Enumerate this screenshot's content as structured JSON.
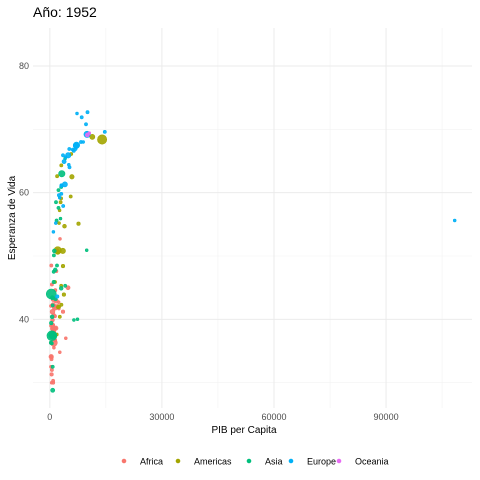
{
  "chart_data": {
    "type": "scatter",
    "title": "Año: 1952",
    "xlabel": "PIB per Capita",
    "ylabel": "Esperanza de Vida",
    "xlim": [
      -4500,
      113000
    ],
    "ylim": [
      26,
      86
    ],
    "xticks": [
      0,
      30000,
      60000,
      90000
    ],
    "xtick_labels": [
      "0",
      "30000",
      "60000",
      "90000"
    ],
    "xminor": [
      15000,
      45000,
      75000,
      105000
    ],
    "yticks": [
      40,
      60,
      80
    ],
    "ytick_labels": [
      "40",
      "60",
      "80"
    ],
    "yminor": [
      30,
      50,
      70
    ],
    "grid": true,
    "legend_position": "bottom",
    "series": [
      {
        "name": "Africa",
        "color": "#F8766D",
        "points": [
          [
            1500,
            43.1,
            1.2
          ],
          [
            900,
            30.0,
            1.0
          ],
          [
            800,
            38.2,
            1.0
          ],
          [
            1800,
            47.6,
            0.9
          ],
          [
            550,
            32.0,
            1.0
          ],
          [
            340,
            39.0,
            1.0
          ],
          [
            1200,
            38.5,
            1.0
          ],
          [
            1100,
            35.5,
            0.9
          ],
          [
            1170,
            38.1,
            1.0
          ],
          [
            1100,
            40.7,
            0.9
          ],
          [
            780,
            39.1,
            1.3
          ],
          [
            2100,
            42.1,
            1.0
          ],
          [
            1390,
            40.5,
            1.0
          ],
          [
            2670,
            34.8,
            0.9
          ],
          [
            1420,
            41.9,
            1.8
          ],
          [
            375,
            34.1,
            0.9
          ],
          [
            360,
            34.1,
            1.4
          ],
          [
            4290,
            37.0,
            0.9
          ],
          [
            480,
            30.0,
            0.9
          ],
          [
            911,
            43.1,
            1.2
          ],
          [
            510,
            34.0,
            1.0
          ],
          [
            300,
            32.5,
            0.9
          ],
          [
            853,
            42.3,
            1.3
          ],
          [
            298,
            42.1,
            0.9
          ],
          [
            575,
            38.5,
            1.0
          ],
          [
            2390,
            42.7,
            0.9
          ],
          [
            1440,
            36.7,
            1.0
          ],
          [
            369,
            36.3,
            1.1
          ],
          [
            450,
            33.7,
            1.0
          ],
          [
            743,
            40.5,
            0.9
          ],
          [
            1970,
            50.9,
            0.9
          ],
          [
            1700,
            42.9,
            1.4
          ],
          [
            470,
            31.3,
            1.1
          ],
          [
            2420,
            41.7,
            0.9
          ],
          [
            760,
            37.4,
            1.0
          ],
          [
            1077,
            36.3,
            2.2
          ],
          [
            2720,
            52.7,
            0.9
          ],
          [
            880,
            39.0,
            1.0
          ],
          [
            1060,
            37.6,
            1.0
          ],
          [
            1450,
            38.6,
            1.0
          ],
          [
            880,
            30.3,
            1.0
          ],
          [
            4880,
            45.0,
            1.3
          ],
          [
            1615,
            38.6,
            1.4
          ],
          [
            3520,
            41.2,
            1.1
          ],
          [
            716,
            41.2,
            1.5
          ],
          [
            860,
            38.6,
            1.0
          ],
          [
            1470,
            44.6,
            1.0
          ],
          [
            730,
            39.9,
            1.2
          ],
          [
            1150,
            42.0,
            1.0
          ],
          [
            406,
            48.5,
            1.0
          ],
          [
            560,
            45.5,
            1.0
          ]
        ]
      },
      {
        "name": "Americas",
        "color": "#A3A500",
        "points": [
          [
            5910,
            62.5,
            1.4
          ],
          [
            2680,
            40.4,
            1.0
          ],
          [
            2110,
            50.9,
            2.3
          ],
          [
            11370,
            68.8,
            1.6
          ],
          [
            3940,
            54.7,
            1.2
          ],
          [
            2140,
            50.6,
            1.4
          ],
          [
            2630,
            57.2,
            0.9
          ],
          [
            5590,
            59.4,
            1.0
          ],
          [
            1400,
            45.9,
            1.0
          ],
          [
            3520,
            48.4,
            1.1
          ],
          [
            3050,
            45.3,
            1.0
          ],
          [
            2430,
            42.0,
            1.1
          ],
          [
            1840,
            37.6,
            1.0
          ],
          [
            2190,
            41.9,
            1.0
          ],
          [
            2900,
            58.5,
            1.0
          ],
          [
            3480,
            50.8,
            1.7
          ],
          [
            3110,
            42.3,
            1.0
          ],
          [
            2480,
            55.2,
            0.9
          ],
          [
            1950,
            62.6,
            1.0
          ],
          [
            3760,
            43.9,
            1.1
          ],
          [
            3080,
            64.3,
            1.0
          ],
          [
            3020,
            59.1,
            1.0
          ],
          [
            13990,
            68.4,
            2.9
          ],
          [
            5720,
            66.1,
            1.0
          ],
          [
            7690,
            55.1,
            1.1
          ]
        ]
      },
      {
        "name": "Asia",
        "color": "#00BF7D",
        "points": [
          [
            780,
            28.8,
            1.3
          ],
          [
            9870,
            50.9,
            0.9
          ],
          [
            690,
            37.5,
            1.7
          ],
          [
            370,
            39.4,
            1.1
          ],
          [
            400,
            44.0,
            3.5
          ],
          [
            3050,
            60.9,
            1.0
          ],
          [
            550,
            37.4,
            3.1
          ],
          [
            750,
            37.5,
            2.4
          ],
          [
            3040,
            44.9,
            1.2
          ],
          [
            4130,
            45.3,
            1.0
          ],
          [
            4090,
            65.4,
            0.9
          ],
          [
            3220,
            63.0,
            2.0
          ],
          [
            1550,
            43.2,
            1.0
          ],
          [
            1090,
            50.1,
            1.0
          ],
          [
            1030,
            47.5,
            1.0
          ],
          [
            7400,
            40.0,
            0.9
          ],
          [
            1830,
            55.6,
            1.0
          ],
          [
            1920,
            48.5,
            1.0
          ],
          [
            786,
            42.2,
            1.0
          ],
          [
            330,
            36.3,
            1.1
          ],
          [
            545,
            36.2,
            1.0
          ],
          [
            1400,
            37.6,
            1.0
          ],
          [
            685,
            43.4,
            1.3
          ],
          [
            1450,
            47.8,
            1.2
          ],
          [
            2320,
            60.4,
            1.0
          ],
          [
            6460,
            39.9,
            0.9
          ],
          [
            2315,
            57.6,
            1.0
          ],
          [
            1080,
            45.9,
            1.1
          ],
          [
            1660,
            58.5,
            1.0
          ],
          [
            1210,
            50.8,
            1.2
          ],
          [
            605,
            40.4,
            1.2
          ],
          [
            780,
            32.5,
            1.0
          ],
          [
            2860,
            55.9,
            0.9
          ]
        ]
      },
      {
        "name": "Europe",
        "color": "#00B0F6",
        "points": [
          [
            1600,
            55.2,
            0.9
          ],
          [
            6140,
            66.8,
            1.0
          ],
          [
            8340,
            68.0,
            1.0
          ],
          [
            970,
            53.8,
            0.9
          ],
          [
            2440,
            59.6,
            1.0
          ],
          [
            3120,
            61.2,
            0.9
          ],
          [
            6880,
            66.9,
            1.0
          ],
          [
            9690,
            70.8,
            1.0
          ],
          [
            6420,
            66.6,
            1.0
          ],
          [
            7030,
            67.4,
            1.8
          ],
          [
            7140,
            67.5,
            2.0
          ],
          [
            3530,
            65.9,
            1.0
          ],
          [
            5260,
            64.0,
            1.0
          ],
          [
            7270,
            72.5,
            0.9
          ],
          [
            5210,
            66.9,
            1.0
          ],
          [
            4930,
            65.9,
            1.7
          ],
          [
            2650,
            59.2,
            0.9
          ],
          [
            8940,
            68.0,
            0.9
          ],
          [
            10100,
            72.7,
            1.0
          ],
          [
            4030,
            61.3,
            1.6
          ],
          [
            3070,
            59.8,
            1.0
          ],
          [
            3140,
            61.1,
            1.1
          ],
          [
            3580,
            57.9,
            1.0
          ],
          [
            5070,
            64.4,
            0.9
          ],
          [
            4220,
            65.6,
            0.9
          ],
          [
            3830,
            64.9,
            1.3
          ],
          [
            8530,
            71.9,
            1.0
          ],
          [
            14730,
            69.6,
            1.0
          ],
          [
            1970,
            43.6,
            1.1
          ],
          [
            9980,
            69.2,
            2.0
          ],
          [
            108380,
            55.6,
            0.9
          ]
        ]
      },
      {
        "name": "Oceania",
        "color": "#E76BF3",
        "points": [
          [
            10040,
            69.1,
            1.2
          ],
          [
            10560,
            69.4,
            0.9
          ]
        ]
      }
    ]
  }
}
